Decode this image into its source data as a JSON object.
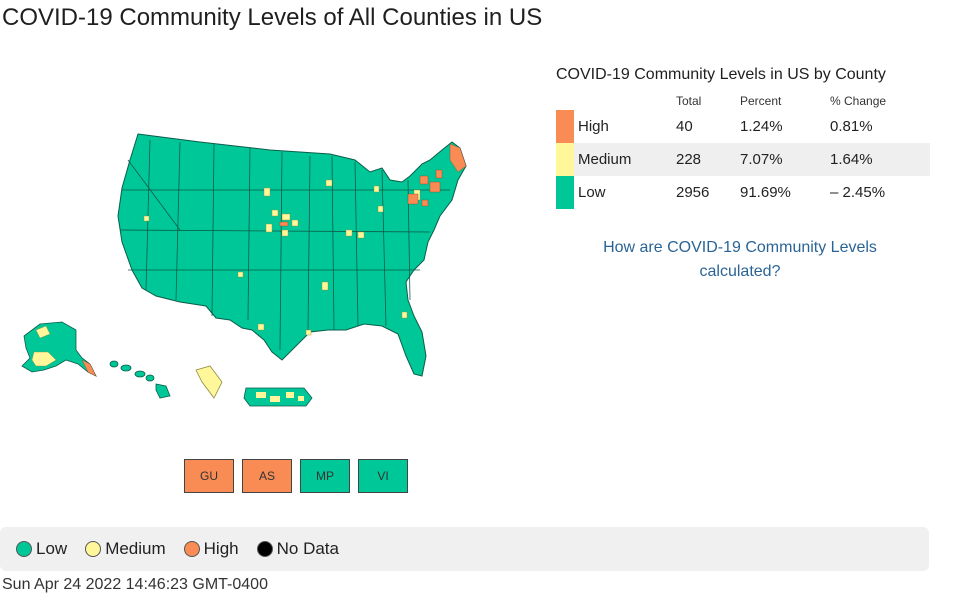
{
  "page": {
    "title": "COVID-19 Community Levels of All Counties in US"
  },
  "colors": {
    "low": "#00c798",
    "medium": "#fff79a",
    "high": "#f98b55",
    "no_data": "#000000"
  },
  "territories": [
    {
      "code": "GU",
      "level": "high"
    },
    {
      "code": "AS",
      "level": "high"
    },
    {
      "code": "MP",
      "level": "low"
    },
    {
      "code": "VI",
      "level": "low"
    }
  ],
  "summary": {
    "title": "COVID-19 Community Levels in US by County",
    "headers": {
      "total": "Total",
      "percent": "Percent",
      "change": "% Change"
    },
    "rows": [
      {
        "level": "High",
        "total": "40",
        "percent": "1.24%",
        "change": "0.81%"
      },
      {
        "level": "Medium",
        "total": "228",
        "percent": "7.07%",
        "change": "1.64%"
      },
      {
        "level": "Low",
        "total": "2956",
        "percent": "91.69%",
        "change": "– 2.45%"
      }
    ]
  },
  "calc_link": {
    "line1": "How are COVID-19 Community Levels",
    "line2": "calculated?"
  },
  "legend": {
    "low": "Low",
    "medium": "Medium",
    "high": "High",
    "no_data": "No Data"
  },
  "timestamp": "Sun Apr 24 2022 14:46:23 GMT-0400"
}
